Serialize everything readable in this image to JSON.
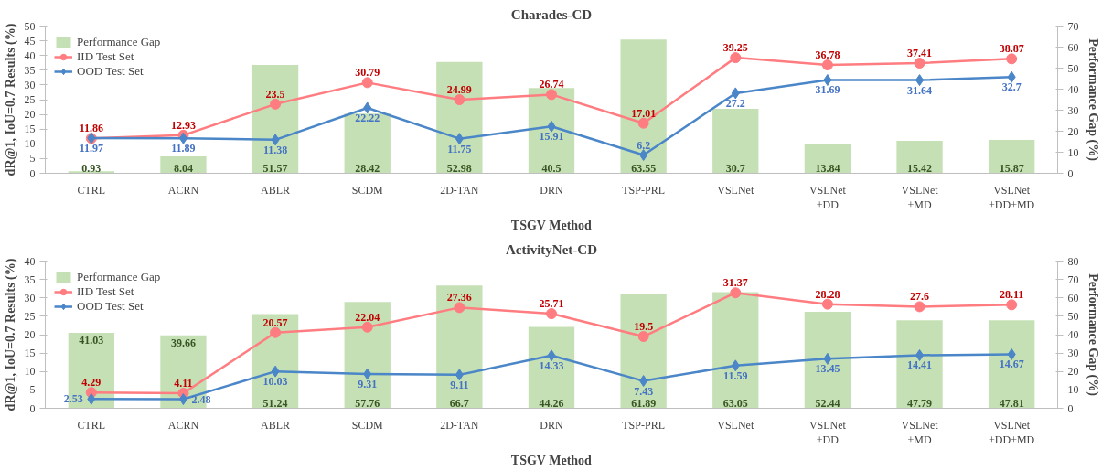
{
  "chart_data": [
    {
      "type": "bar",
      "title": "Charades-CD",
      "xlabel": "TSGV Method",
      "ylabel": "dR@1, IoU=0.7 Results (%)",
      "y2label": "Performance Gap (%)",
      "categories": [
        "CTRL",
        "ACRN",
        "ABLR",
        "SCDM",
        "2D-TAN",
        "DRN",
        "TSP-PRL",
        "VSLNet",
        "VSLNet\n+DD",
        "VSLNet\n+MD",
        "VSLNet\n+DD+MD"
      ],
      "series": [
        {
          "name": "Performance Gap",
          "axis": "y2",
          "color": "#c5e0b4",
          "values": [
            0.93,
            8.04,
            51.57,
            28.42,
            52.98,
            40.5,
            63.55,
            30.7,
            13.84,
            15.42,
            15.87
          ]
        },
        {
          "name": "IID Test Set",
          "type": "line",
          "marker": "circle",
          "color": "#ff7c80",
          "values": [
            11.86,
            12.93,
            23.5,
            30.79,
            24.99,
            26.74,
            17.01,
            39.25,
            36.78,
            37.41,
            38.87
          ]
        },
        {
          "name": "OOD Test Set",
          "type": "line",
          "marker": "diamond",
          "color": "#4a86c8",
          "values": [
            11.97,
            11.89,
            11.38,
            22.22,
            11.75,
            15.91,
            6.2,
            27.2,
            31.69,
            31.64,
            32.7
          ]
        }
      ],
      "ylim": [
        0,
        50
      ],
      "yticks": [
        0,
        5,
        10,
        15,
        20,
        25,
        30,
        35,
        40,
        45,
        50
      ],
      "y2lim": [
        0,
        70
      ],
      "y2ticks": [
        0,
        10,
        20,
        30,
        40,
        50,
        60,
        70
      ],
      "data_labels": true,
      "legend": "top left",
      "grid": false
    },
    {
      "type": "bar",
      "title": "ActivityNet-CD",
      "xlabel": "TSGV Method",
      "ylabel": "dR@1, IoU=0.7 Results (%)",
      "y2label": "Performance Gap (%)",
      "categories": [
        "CTRL",
        "ACRN",
        "ABLR",
        "SCDM",
        "2D-TAN",
        "DRN",
        "TSP-PRL",
        "VSLNet",
        "VSLNet\n+DD",
        "VSLNet\n+MD",
        "VSLNet\n+DD+MD"
      ],
      "series": [
        {
          "name": "Performance Gap",
          "axis": "y2",
          "color": "#c5e0b4",
          "values": [
            41.03,
            39.66,
            51.24,
            57.76,
            66.7,
            44.26,
            61.89,
            63.05,
            52.44,
            47.79,
            47.81
          ]
        },
        {
          "name": "IID Test Set",
          "type": "line",
          "marker": "circle",
          "color": "#ff7c80",
          "values": [
            4.29,
            4.11,
            20.57,
            22.04,
            27.36,
            25.71,
            19.5,
            31.37,
            28.28,
            27.6,
            28.11
          ]
        },
        {
          "name": "OOD Test Set",
          "type": "line",
          "marker": "diamond",
          "color": "#4a86c8",
          "values": [
            2.53,
            2.48,
            10.03,
            9.31,
            9.11,
            14.33,
            7.43,
            11.59,
            13.45,
            14.41,
            14.67
          ]
        }
      ],
      "ylim": [
        0,
        40
      ],
      "yticks": [
        0,
        5,
        10,
        15,
        20,
        25,
        30,
        35,
        40
      ],
      "y2lim": [
        0,
        80
      ],
      "y2ticks": [
        0,
        10,
        20,
        30,
        40,
        50,
        60,
        70,
        80
      ],
      "data_labels": true,
      "legend": "top left",
      "grid": false
    }
  ]
}
